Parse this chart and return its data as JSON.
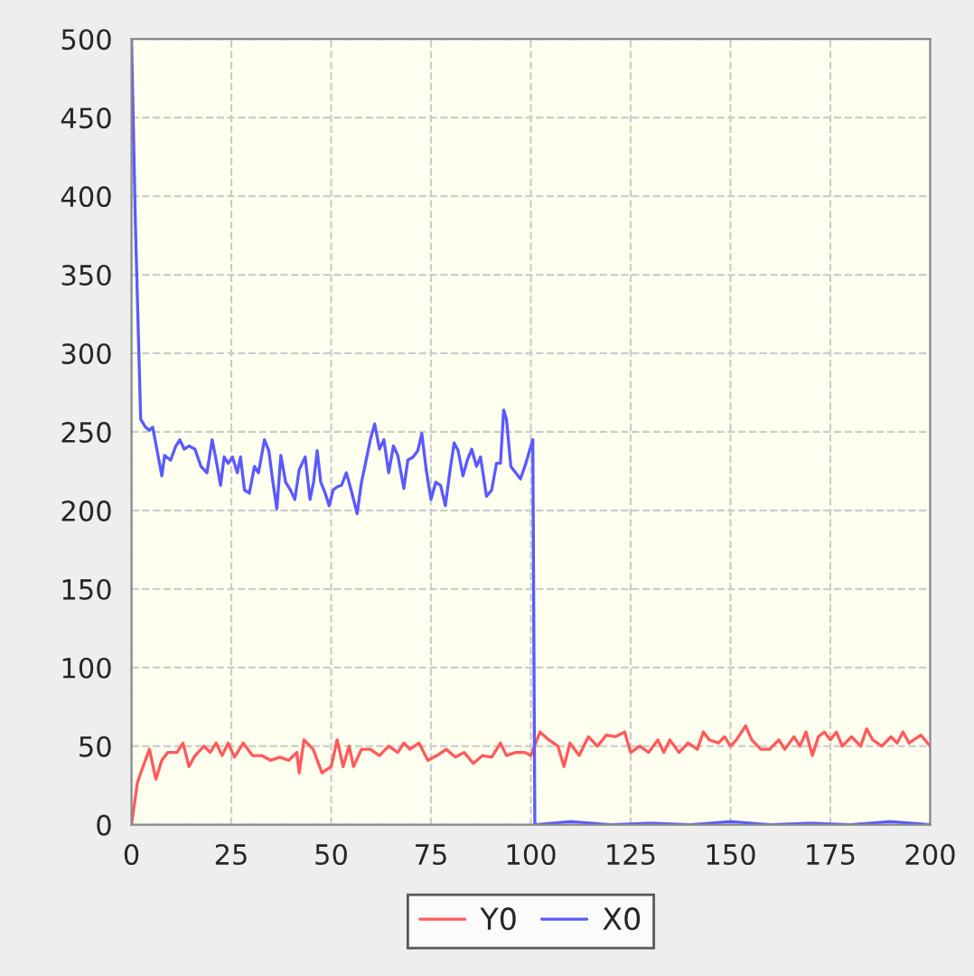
{
  "chart_data": {
    "type": "line",
    "xlim": [
      0,
      200
    ],
    "ylim": [
      0,
      500
    ],
    "xticks": [
      0,
      25,
      50,
      75,
      100,
      125,
      150,
      175,
      200
    ],
    "yticks": [
      0,
      50,
      100,
      150,
      200,
      250,
      300,
      350,
      400,
      450,
      500
    ],
    "grid": true,
    "legend": "bottom",
    "line_style": "solid",
    "marker": "none",
    "series": [
      {
        "name": "Y0",
        "color": "#ff5a5a",
        "x": [
          0,
          1.5,
          2.6,
          4.5,
          6.1,
          7.6,
          9.1,
          11.4,
          12.9,
          14.4,
          15.9,
          18.2,
          19.7,
          21.2,
          22.7,
          24.2,
          25.8,
          28,
          30.3,
          32.6,
          34.8,
          37.1,
          39.4,
          41.4,
          42,
          43.2,
          45.5,
          47.7,
          50,
          51.5,
          53,
          54.5,
          55.6,
          57.6,
          59.8,
          62.1,
          64.4,
          66.7,
          68.2,
          69.7,
          72,
          74.2,
          76.5,
          78.8,
          81.1,
          83.3,
          85.6,
          87.9,
          90.2,
          92.4,
          93.9,
          96.2,
          98.5,
          100,
          102.3,
          104.5,
          106.8,
          108.3,
          109.8,
          112.1,
          114.4,
          116.7,
          118.9,
          121.2,
          123.5,
          125,
          127.3,
          129.5,
          131.8,
          133.3,
          134.8,
          137.1,
          139.4,
          141.7,
          143.2,
          144.7,
          147,
          148.5,
          150,
          151.5,
          153.8,
          155.3,
          157.6,
          159.8,
          162.1,
          163.6,
          165.9,
          167.4,
          168.9,
          170.5,
          172,
          173.5,
          175,
          176.5,
          178,
          180.3,
          182.6,
          184.1,
          185.6,
          187.9,
          190.2,
          191.7,
          193.2,
          194.7,
          197.7,
          200
        ],
        "values": [
          0,
          27,
          35,
          48,
          29,
          41,
          46,
          46,
          52,
          37,
          44,
          50,
          46,
          52,
          44,
          52,
          43,
          52,
          44,
          44,
          41,
          43,
          41,
          46,
          33,
          54,
          48,
          33,
          37,
          54,
          37,
          50,
          37,
          48,
          48,
          44,
          50,
          46,
          52,
          48,
          52,
          41,
          44,
          48,
          43,
          46,
          39,
          44,
          43,
          52,
          44,
          46,
          46,
          44,
          59,
          54,
          50,
          37,
          52,
          44,
          56,
          50,
          57,
          56,
          59,
          46,
          50,
          46,
          54,
          46,
          54,
          46,
          52,
          48,
          59,
          54,
          52,
          56,
          50,
          54,
          63,
          54,
          48,
          48,
          54,
          48,
          56,
          50,
          59,
          44,
          56,
          59,
          54,
          59,
          50,
          56,
          50,
          61,
          54,
          50,
          56,
          52,
          59,
          52,
          57,
          50
        ]
      },
      {
        "name": "X0",
        "color": "#5a5aff",
        "x": [
          0,
          1,
          2.3,
          3.5,
          4.5,
          5.3,
          6.5,
          7.6,
          8.3,
          9.8,
          11.1,
          12.1,
          13.2,
          14.4,
          15.9,
          17.4,
          18.9,
          20.2,
          21.2,
          22.3,
          23.2,
          24.2,
          25.3,
          26.5,
          27.3,
          28.3,
          29.5,
          30.8,
          31.8,
          33.3,
          34.4,
          35.3,
          36.4,
          37.4,
          38.6,
          39.8,
          40.9,
          42,
          43.5,
          44.7,
          45.6,
          46.5,
          47.4,
          48.5,
          49.5,
          50.5,
          51.5,
          52.6,
          53.8,
          55,
          56.5,
          57.6,
          58.6,
          59.8,
          60.9,
          62.1,
          63.2,
          64.4,
          65.6,
          66.7,
          68.2,
          69.2,
          70.5,
          71.7,
          72.7,
          73.8,
          75,
          76.2,
          77.4,
          78.6,
          79.8,
          80.8,
          81.8,
          83,
          84.1,
          85.2,
          86.4,
          87.4,
          88.9,
          90.2,
          91.4,
          92.4,
          93.2,
          93.9,
          95,
          96.2,
          97.4,
          98.5,
          100.5,
          101,
          110,
          120,
          130,
          140,
          150,
          160,
          170,
          180,
          190,
          200
        ],
        "values": [
          500,
          380,
          258,
          253,
          251,
          253,
          237,
          222,
          235,
          232,
          241,
          245,
          239,
          241,
          239,
          228,
          224,
          245,
          232,
          216,
          234,
          230,
          234,
          224,
          234,
          213,
          211,
          228,
          224,
          245,
          238,
          220,
          201,
          235,
          218,
          213,
          207,
          226,
          234,
          207,
          218,
          238,
          218,
          211,
          203,
          213,
          215,
          216,
          224,
          213,
          198,
          218,
          230,
          245,
          255,
          239,
          245,
          224,
          241,
          235,
          214,
          232,
          234,
          238,
          249,
          226,
          207,
          218,
          216,
          203,
          226,
          243,
          238,
          222,
          232,
          239,
          228,
          234,
          209,
          213,
          230,
          230,
          264,
          258,
          228,
          224,
          220,
          228,
          245,
          0,
          2,
          0,
          1,
          0,
          2,
          0,
          1,
          0,
          2,
          0
        ]
      }
    ]
  }
}
